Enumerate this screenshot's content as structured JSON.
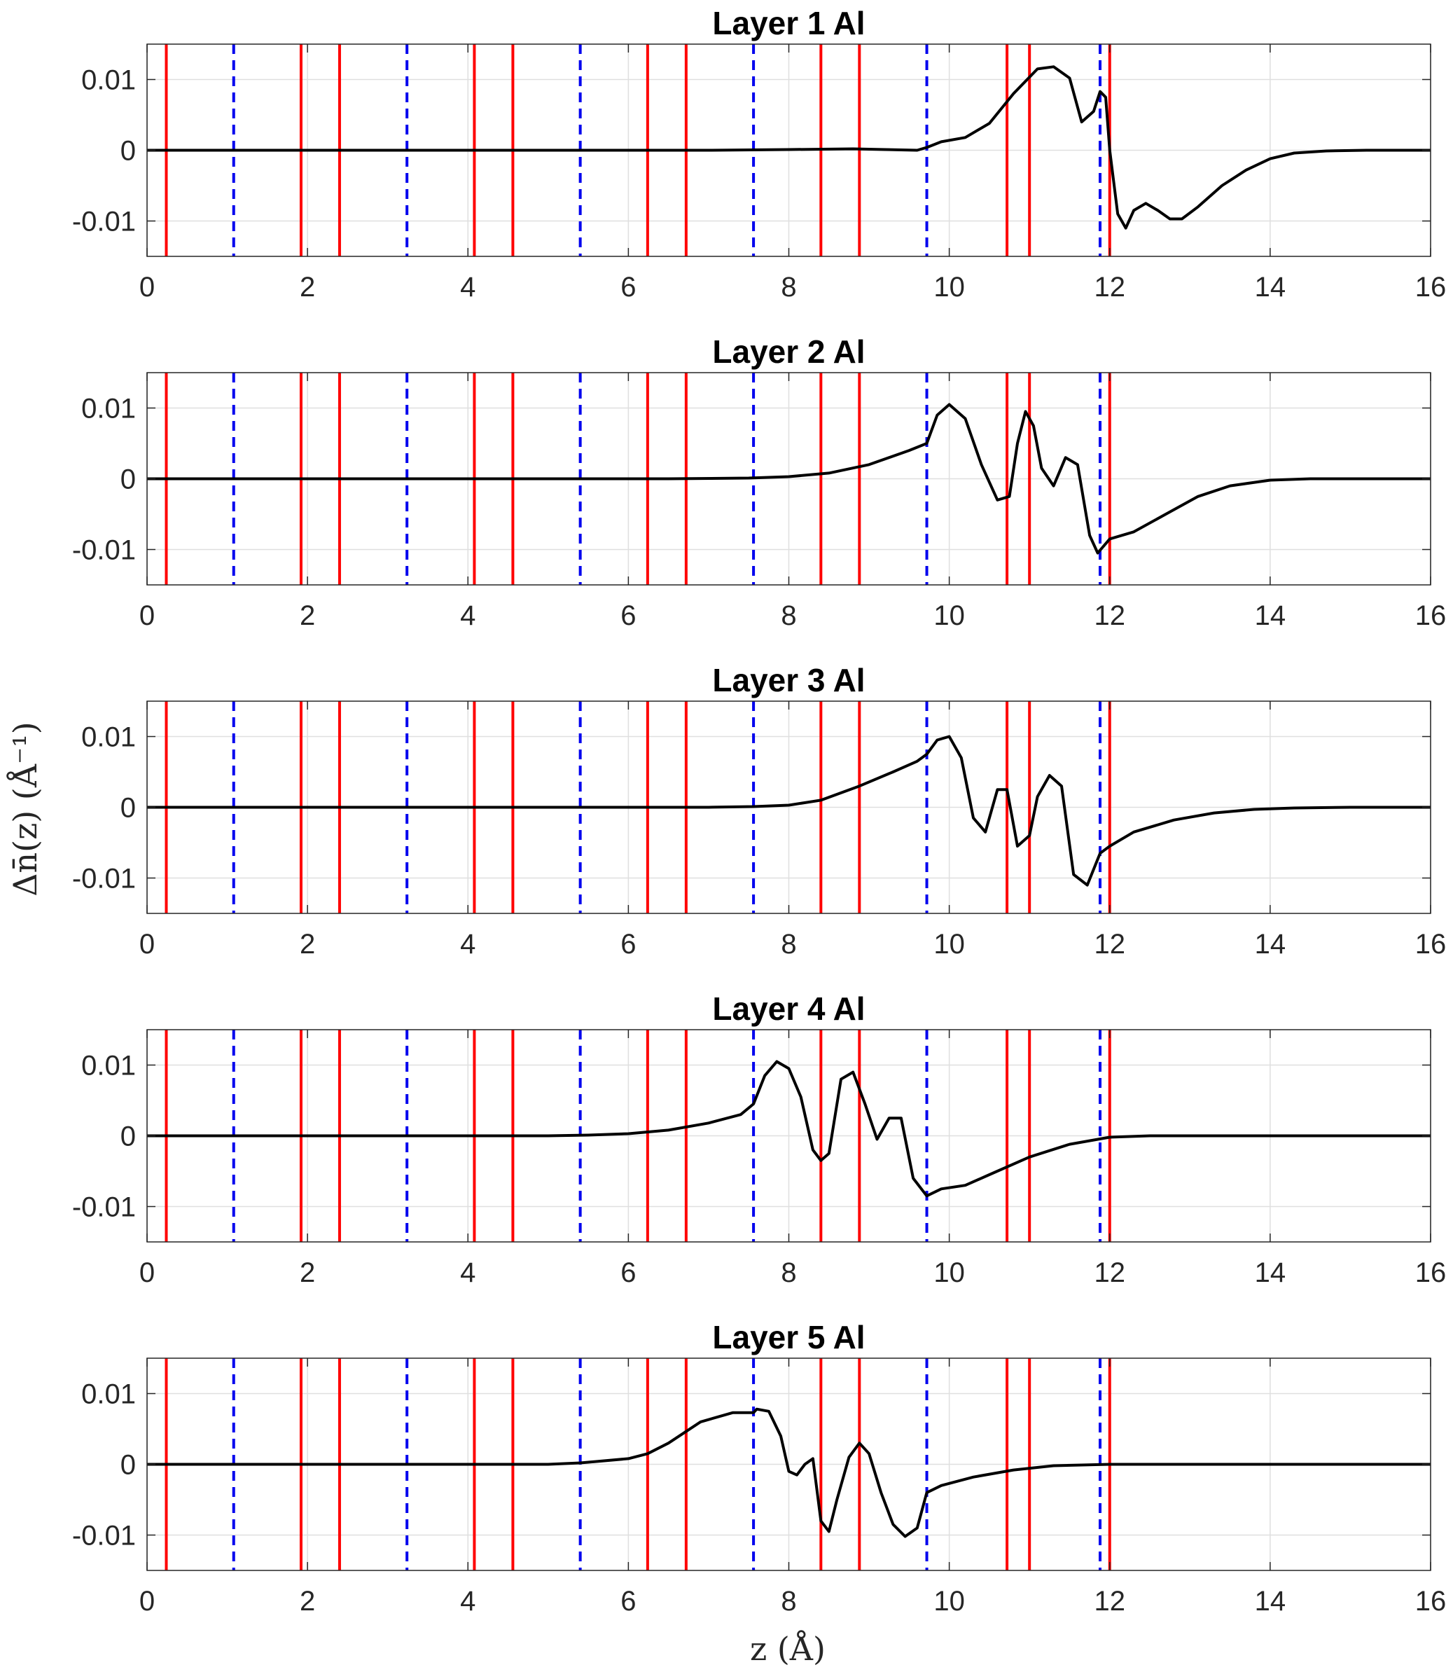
{
  "figure": {
    "ylabel": "Δn̄(z)  (Å⁻¹)",
    "xlabel": "z  (Å)"
  },
  "colors": {
    "curve": "#000000",
    "solid_line": "#ff0000",
    "dashed_line": "#0000ee",
    "axes": "#262626",
    "grid": "#dfdfdf"
  },
  "chart_data": [
    {
      "type": "line",
      "title": "Layer 1 Al",
      "xlim": [
        0,
        16
      ],
      "ylim": [
        -0.015,
        0.015
      ],
      "xticks": [
        0,
        2,
        4,
        6,
        8,
        10,
        12,
        14,
        16
      ],
      "xtick_labels": [
        "0",
        "2",
        "4",
        "6",
        "8",
        "10",
        "12",
        "14",
        "16"
      ],
      "yticks": [
        -0.01,
        0,
        0.01
      ],
      "ytick_labels": [
        "-0.01",
        "0",
        "0.01"
      ],
      "grid": true,
      "red_lines_x": [
        0.24,
        1.92,
        2.4,
        4.08,
        4.56,
        6.24,
        6.72,
        8.4,
        8.88,
        10.72,
        11.0,
        12.0
      ],
      "blue_dashed_x": [
        1.08,
        3.24,
        5.4,
        7.56,
        9.72,
        11.88
      ],
      "series": [
        {
          "name": "Δn",
          "x": [
            0,
            7,
            8,
            8.8,
            9.2,
            9.6,
            9.72,
            9.9,
            10.2,
            10.5,
            10.8,
            11.1,
            11.3,
            11.5,
            11.65,
            11.8,
            11.88,
            11.95,
            12.0,
            12.1,
            12.2,
            12.3,
            12.45,
            12.6,
            12.75,
            12.9,
            13.1,
            13.4,
            13.7,
            14.0,
            14.3,
            14.7,
            15.2,
            16
          ],
          "y": [
            0,
            0,
            0.0001,
            0.0002,
            0.0001,
            0,
            0.0004,
            0.0012,
            0.0018,
            0.0038,
            0.008,
            0.0115,
            0.0118,
            0.0102,
            0.004,
            0.0055,
            0.0083,
            0.0075,
            0,
            -0.009,
            -0.011,
            -0.0085,
            -0.0075,
            -0.0085,
            -0.0097,
            -0.0097,
            -0.008,
            -0.005,
            -0.0028,
            -0.0012,
            -0.0004,
            -0.0001,
            0,
            0
          ]
        }
      ]
    },
    {
      "type": "line",
      "title": "Layer 2 Al",
      "xlim": [
        0,
        16
      ],
      "ylim": [
        -0.015,
        0.015
      ],
      "xticks": [
        0,
        2,
        4,
        6,
        8,
        10,
        12,
        14,
        16
      ],
      "xtick_labels": [
        "0",
        "2",
        "4",
        "6",
        "8",
        "10",
        "12",
        "14",
        "16"
      ],
      "yticks": [
        -0.01,
        0,
        0.01
      ],
      "ytick_labels": [
        "-0.01",
        "0",
        "0.01"
      ],
      "grid": true,
      "red_lines_x": [
        0.24,
        1.92,
        2.4,
        4.08,
        4.56,
        6.24,
        6.72,
        8.4,
        8.88,
        10.72,
        11.0,
        12.0
      ],
      "blue_dashed_x": [
        1.08,
        3.24,
        5.4,
        7.56,
        9.72,
        11.88
      ],
      "series": [
        {
          "name": "Δn",
          "x": [
            0,
            6.5,
            7.5,
            8.0,
            8.5,
            9.0,
            9.5,
            9.72,
            9.85,
            10.0,
            10.2,
            10.4,
            10.6,
            10.75,
            10.85,
            10.95,
            11.05,
            11.15,
            11.3,
            11.45,
            11.6,
            11.75,
            11.85,
            12.0,
            12.3,
            12.7,
            13.1,
            13.5,
            14.0,
            14.5,
            15.0,
            16
          ],
          "y": [
            0,
            0,
            0.0001,
            0.0003,
            0.0008,
            0.002,
            0.004,
            0.005,
            0.009,
            0.0105,
            0.0085,
            0.002,
            -0.003,
            -0.0025,
            0.005,
            0.0095,
            0.0075,
            0.0015,
            -0.001,
            0.003,
            0.002,
            -0.008,
            -0.0105,
            -0.0085,
            -0.0075,
            -0.005,
            -0.0025,
            -0.001,
            -0.0002,
            0,
            0,
            0
          ]
        }
      ]
    },
    {
      "type": "line",
      "title": "Layer 3 Al",
      "xlim": [
        0,
        16
      ],
      "ylim": [
        -0.015,
        0.015
      ],
      "xticks": [
        0,
        2,
        4,
        6,
        8,
        10,
        12,
        14,
        16
      ],
      "xtick_labels": [
        "0",
        "2",
        "4",
        "6",
        "8",
        "10",
        "12",
        "14",
        "16"
      ],
      "yticks": [
        -0.01,
        0,
        0.01
      ],
      "ytick_labels": [
        "-0.01",
        "0",
        "0.01"
      ],
      "grid": true,
      "red_lines_x": [
        0.24,
        1.92,
        2.4,
        4.08,
        4.56,
        6.24,
        6.72,
        8.4,
        8.88,
        10.72,
        11.0,
        12.0
      ],
      "blue_dashed_x": [
        1.08,
        3.24,
        5.4,
        7.56,
        9.72,
        11.88
      ],
      "series": [
        {
          "name": "Δn",
          "x": [
            0,
            7.0,
            7.56,
            8.0,
            8.4,
            8.88,
            9.3,
            9.6,
            9.72,
            9.85,
            10.0,
            10.15,
            10.3,
            10.45,
            10.6,
            10.72,
            10.85,
            11.0,
            11.1,
            11.25,
            11.4,
            11.55,
            11.72,
            11.88,
            12.0,
            12.3,
            12.8,
            13.3,
            13.8,
            14.3,
            15.0,
            16
          ],
          "y": [
            0,
            0,
            0.0001,
            0.0003,
            0.001,
            0.003,
            0.005,
            0.0065,
            0.0075,
            0.0095,
            0.01,
            0.007,
            -0.0015,
            -0.0035,
            0.0025,
            0.0025,
            -0.0055,
            -0.004,
            0.0015,
            0.0045,
            0.003,
            -0.0095,
            -0.011,
            -0.0065,
            -0.0055,
            -0.0035,
            -0.0018,
            -0.0008,
            -0.0003,
            -0.0001,
            0,
            0
          ]
        }
      ]
    },
    {
      "type": "line",
      "title": "Layer 4 Al",
      "xlim": [
        0,
        16
      ],
      "ylim": [
        -0.015,
        0.015
      ],
      "xticks": [
        0,
        2,
        4,
        6,
        8,
        10,
        12,
        14,
        16
      ],
      "xtick_labels": [
        "0",
        "2",
        "4",
        "6",
        "8",
        "10",
        "12",
        "14",
        "16"
      ],
      "yticks": [
        -0.01,
        0,
        0.01
      ],
      "ytick_labels": [
        "-0.01",
        "0",
        "0.01"
      ],
      "grid": true,
      "red_lines_x": [
        0.24,
        1.92,
        2.4,
        4.08,
        4.56,
        6.24,
        6.72,
        8.4,
        8.88,
        10.72,
        11.0,
        12.0
      ],
      "blue_dashed_x": [
        1.08,
        3.24,
        5.4,
        7.56,
        9.72,
        11.88
      ],
      "series": [
        {
          "name": "Δn",
          "x": [
            0,
            5.0,
            5.5,
            6.0,
            6.5,
            7.0,
            7.4,
            7.56,
            7.7,
            7.85,
            8.0,
            8.15,
            8.3,
            8.4,
            8.5,
            8.65,
            8.8,
            8.95,
            9.1,
            9.25,
            9.4,
            9.55,
            9.72,
            9.9,
            10.2,
            10.5,
            11.0,
            11.5,
            12.0,
            12.5,
            13.0,
            16
          ],
          "y": [
            0,
            0,
            0.0001,
            0.0003,
            0.0008,
            0.0018,
            0.003,
            0.0045,
            0.0085,
            0.0105,
            0.0095,
            0.0055,
            -0.002,
            -0.0035,
            -0.0025,
            0.008,
            0.009,
            0.0045,
            -0.0005,
            0.0025,
            0.0025,
            -0.006,
            -0.0085,
            -0.0075,
            -0.007,
            -0.0055,
            -0.003,
            -0.0012,
            -0.0002,
            0,
            0,
            0
          ]
        }
      ]
    },
    {
      "type": "line",
      "title": "Layer 5 Al",
      "xlim": [
        0,
        16
      ],
      "ylim": [
        -0.015,
        0.015
      ],
      "xticks": [
        0,
        2,
        4,
        6,
        8,
        10,
        12,
        14,
        16
      ],
      "xtick_labels": [
        "0",
        "2",
        "4",
        "6",
        "8",
        "10",
        "12",
        "14",
        "16"
      ],
      "yticks": [
        -0.01,
        0,
        0.01
      ],
      "ytick_labels": [
        "-0.01",
        "0",
        "0.01"
      ],
      "grid": true,
      "red_lines_x": [
        0.24,
        1.92,
        2.4,
        4.08,
        4.56,
        6.24,
        6.72,
        8.4,
        8.88,
        10.72,
        11.0,
        12.0
      ],
      "blue_dashed_x": [
        1.08,
        3.24,
        5.4,
        7.56,
        9.72,
        11.88
      ],
      "series": [
        {
          "name": "Δn",
          "x": [
            0,
            5.0,
            5.4,
            5.6,
            6.0,
            6.24,
            6.5,
            6.9,
            7.3,
            7.56,
            7.6,
            7.75,
            7.9,
            8.0,
            8.1,
            8.2,
            8.3,
            8.4,
            8.5,
            8.6,
            8.75,
            8.88,
            9.0,
            9.15,
            9.3,
            9.45,
            9.6,
            9.72,
            9.9,
            10.3,
            10.8,
            11.3,
            12.0,
            16
          ],
          "y": [
            0,
            0,
            0.0002,
            0.0004,
            0.0008,
            0.0015,
            0.003,
            0.006,
            0.0073,
            0.0073,
            0.0078,
            0.0075,
            0.004,
            -0.001,
            -0.0015,
            0,
            0.0008,
            -0.008,
            -0.0095,
            -0.005,
            0.001,
            0.003,
            0.0015,
            -0.004,
            -0.0085,
            -0.0102,
            -0.009,
            -0.004,
            -0.003,
            -0.0018,
            -0.0008,
            -0.0002,
            0,
            0
          ]
        }
      ]
    }
  ]
}
